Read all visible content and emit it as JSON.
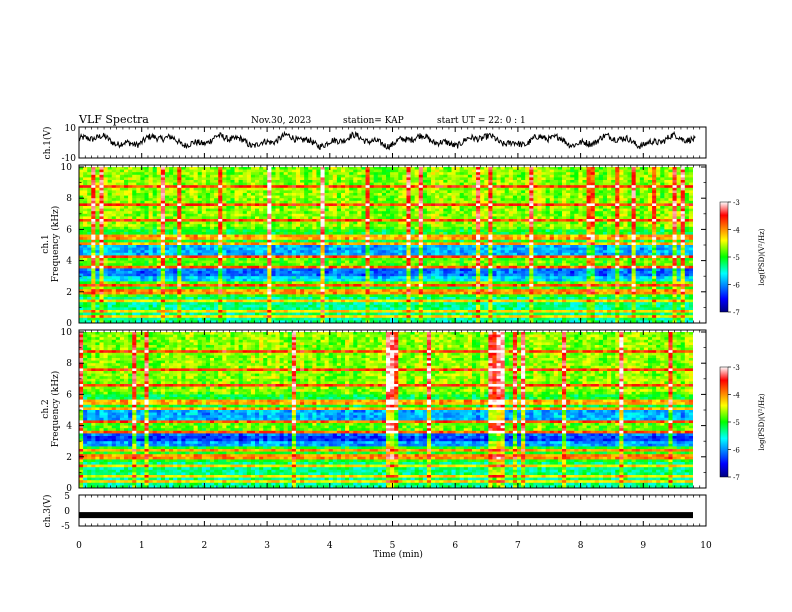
{
  "header": {
    "title": "VLF Spectra",
    "date": "Nov.30, 2023",
    "station": "station= KAP",
    "start": "start  UT =  22: 0  : 1"
  },
  "chart_data": [
    {
      "type": "line",
      "panel": "ch1-waveform",
      "ylabel": "ch.1(V)",
      "ylim": [
        -10,
        10
      ],
      "yticks": [
        "10",
        "-10"
      ],
      "x_range_min": [
        0,
        9.83
      ],
      "description_values": "noisy waveform oscillating roughly between -5 and 6 V"
    },
    {
      "type": "heatmap",
      "panel": "ch1-spectrogram",
      "ylabel_line1": "ch.1",
      "ylabel_line2": "Frequency (kHz)",
      "ylim": [
        0,
        10
      ],
      "yticks": [
        "0",
        "2",
        "4",
        "6",
        "8",
        "10"
      ],
      "colorbar": {
        "label": "log(PSD)(V²/Hz)",
        "range": [
          -7,
          -3
        ],
        "ticks": [
          "-3",
          "-4",
          "-5",
          "-6",
          "-7"
        ]
      }
    },
    {
      "type": "heatmap",
      "panel": "ch2-spectrogram",
      "ylabel_line1": "ch.2",
      "ylabel_line2": "Frequency (kHz)",
      "ylim": [
        0,
        10
      ],
      "yticks": [
        "0",
        "2",
        "4",
        "6",
        "8",
        "10"
      ],
      "colorbar": {
        "label": "log(PSD)(V²/Hz)",
        "range": [
          -7,
          -3
        ],
        "ticks": [
          "-3",
          "-4",
          "-5",
          "-6",
          "-7"
        ]
      }
    },
    {
      "type": "line",
      "panel": "ch3-waveform",
      "ylabel": "ch.3(V)",
      "ylim": [
        -5,
        5
      ],
      "yticks": [
        "5",
        "0",
        "-5"
      ],
      "level": -1.5
    }
  ],
  "xaxis": {
    "label": "Time (min)",
    "range": [
      0,
      10
    ],
    "ticks": [
      "0",
      "1",
      "2",
      "3",
      "4",
      "5",
      "6",
      "7",
      "8",
      "9",
      "10"
    ]
  },
  "colors": {
    "line": "#000000",
    "frame": "#000000"
  }
}
